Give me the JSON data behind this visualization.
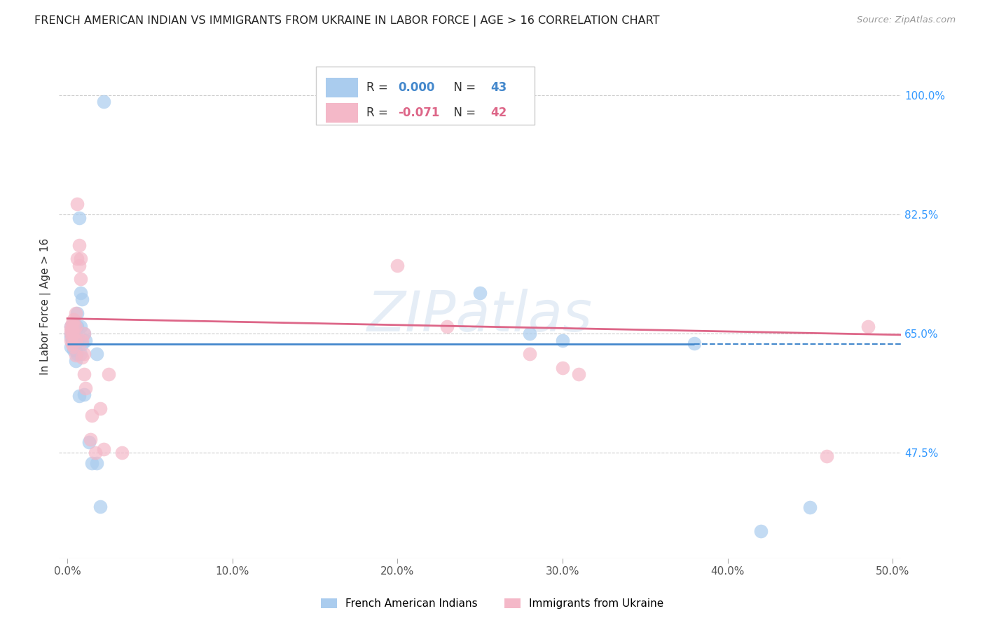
{
  "title": "FRENCH AMERICAN INDIAN VS IMMIGRANTS FROM UKRAINE IN LABOR FORCE | AGE > 16 CORRELATION CHART",
  "source": "Source: ZipAtlas.com",
  "xlabel_ticks": [
    "0.0%",
    "10.0%",
    "20.0%",
    "30.0%",
    "40.0%",
    "50.0%"
  ],
  "ylabel_ticks_right": [
    "100.0%",
    "82.5%",
    "65.0%",
    "47.5%"
  ],
  "ylabel_label": "In Labor Force | Age > 16",
  "xlim": [
    -0.005,
    0.505
  ],
  "ylim": [
    0.32,
    1.06
  ],
  "ytick_vals": [
    0.475,
    0.65,
    0.825,
    1.0
  ],
  "xtick_vals": [
    0.0,
    0.1,
    0.2,
    0.3,
    0.4,
    0.5
  ],
  "blue_R": "0.000",
  "blue_N": "43",
  "pink_R": "-0.071",
  "pink_N": "42",
  "blue_color": "#aaccee",
  "pink_color": "#f4b8c8",
  "blue_line_color": "#4488cc",
  "pink_line_color": "#dd6688",
  "blue_line_y": 0.634,
  "pink_line_y0": 0.672,
  "pink_line_y1": 0.648,
  "blue_scatter": [
    [
      0.002,
      0.65
    ],
    [
      0.002,
      0.66
    ],
    [
      0.002,
      0.645
    ],
    [
      0.002,
      0.63
    ],
    [
      0.003,
      0.655
    ],
    [
      0.003,
      0.64
    ],
    [
      0.003,
      0.65
    ],
    [
      0.003,
      0.638
    ],
    [
      0.004,
      0.66
    ],
    [
      0.004,
      0.648
    ],
    [
      0.004,
      0.635
    ],
    [
      0.004,
      0.625
    ],
    [
      0.005,
      0.658
    ],
    [
      0.005,
      0.642
    ],
    [
      0.005,
      0.625
    ],
    [
      0.005,
      0.61
    ],
    [
      0.006,
      0.68
    ],
    [
      0.006,
      0.66
    ],
    [
      0.006,
      0.64
    ],
    [
      0.006,
      0.62
    ],
    [
      0.007,
      0.82
    ],
    [
      0.007,
      0.64
    ],
    [
      0.007,
      0.558
    ],
    [
      0.008,
      0.71
    ],
    [
      0.008,
      0.66
    ],
    [
      0.008,
      0.62
    ],
    [
      0.009,
      0.7
    ],
    [
      0.009,
      0.635
    ],
    [
      0.01,
      0.65
    ],
    [
      0.01,
      0.56
    ],
    [
      0.011,
      0.64
    ],
    [
      0.013,
      0.49
    ],
    [
      0.015,
      0.46
    ],
    [
      0.018,
      0.62
    ],
    [
      0.018,
      0.46
    ],
    [
      0.02,
      0.396
    ],
    [
      0.022,
      0.99
    ],
    [
      0.25,
      0.71
    ],
    [
      0.28,
      0.65
    ],
    [
      0.3,
      0.64
    ],
    [
      0.38,
      0.636
    ],
    [
      0.42,
      0.36
    ],
    [
      0.45,
      0.395
    ]
  ],
  "pink_scatter": [
    [
      0.002,
      0.66
    ],
    [
      0.002,
      0.655
    ],
    [
      0.002,
      0.65
    ],
    [
      0.002,
      0.64
    ],
    [
      0.003,
      0.665
    ],
    [
      0.003,
      0.658
    ],
    [
      0.003,
      0.648
    ],
    [
      0.003,
      0.635
    ],
    [
      0.004,
      0.67
    ],
    [
      0.004,
      0.66
    ],
    [
      0.004,
      0.65
    ],
    [
      0.004,
      0.63
    ],
    [
      0.005,
      0.68
    ],
    [
      0.005,
      0.66
    ],
    [
      0.005,
      0.64
    ],
    [
      0.005,
      0.618
    ],
    [
      0.006,
      0.84
    ],
    [
      0.006,
      0.76
    ],
    [
      0.007,
      0.78
    ],
    [
      0.007,
      0.75
    ],
    [
      0.008,
      0.76
    ],
    [
      0.008,
      0.73
    ],
    [
      0.009,
      0.64
    ],
    [
      0.009,
      0.615
    ],
    [
      0.01,
      0.65
    ],
    [
      0.01,
      0.62
    ],
    [
      0.01,
      0.59
    ],
    [
      0.011,
      0.57
    ],
    [
      0.014,
      0.495
    ],
    [
      0.015,
      0.53
    ],
    [
      0.017,
      0.475
    ],
    [
      0.02,
      0.54
    ],
    [
      0.022,
      0.48
    ],
    [
      0.025,
      0.59
    ],
    [
      0.033,
      0.475
    ],
    [
      0.2,
      0.75
    ],
    [
      0.23,
      0.66
    ],
    [
      0.28,
      0.62
    ],
    [
      0.3,
      0.6
    ],
    [
      0.31,
      0.59
    ],
    [
      0.46,
      0.47
    ],
    [
      0.485,
      0.66
    ]
  ],
  "watermark": "ZIPatlas",
  "background_color": "#ffffff",
  "grid_color": "#cccccc"
}
